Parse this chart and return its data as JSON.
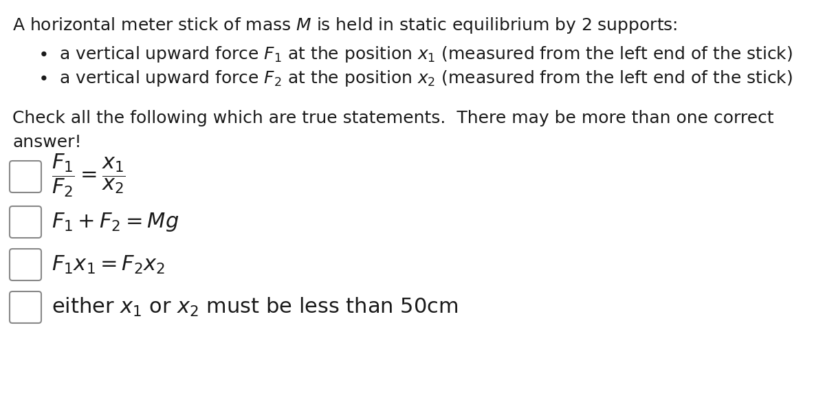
{
  "background_color": "#ffffff",
  "text_color": "#1a1a1a",
  "title_fontsize": 18,
  "body_fontsize": 18,
  "option_fontsize": 22,
  "checkbox_edge_color": "#888888",
  "checkbox_fill_color": "#ffffff"
}
